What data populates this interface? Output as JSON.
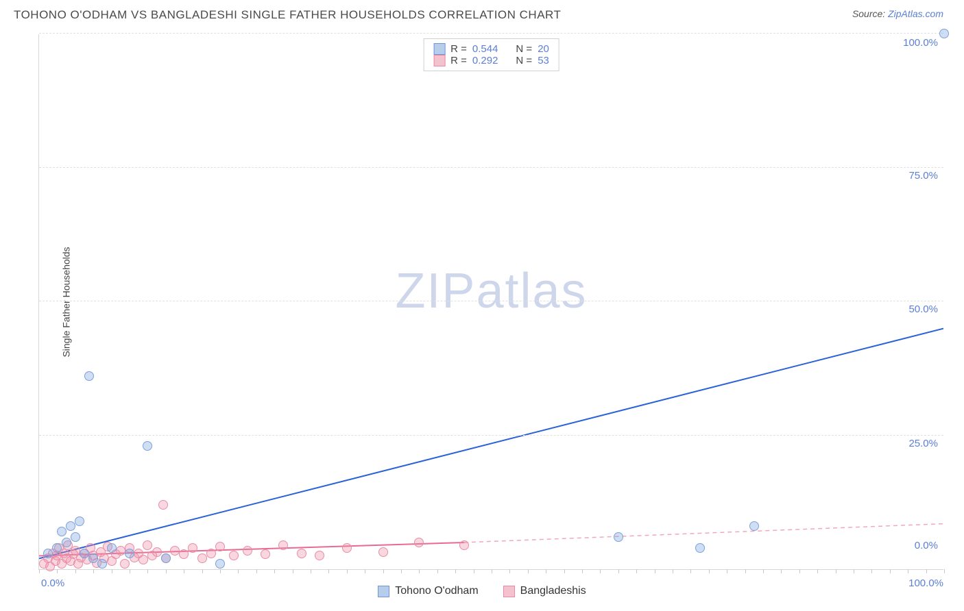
{
  "title": "TOHONO O'ODHAM VS BANGLADESHI SINGLE FATHER HOUSEHOLDS CORRELATION CHART",
  "source_prefix": "Source: ",
  "source_link": "ZipAtlas.com",
  "y_axis_label": "Single Father Households",
  "watermark_a": "ZIP",
  "watermark_b": "atlas",
  "chart": {
    "type": "scatter",
    "xlim": [
      0,
      100
    ],
    "ylim": [
      0,
      100
    ],
    "y_ticks": [
      0,
      25,
      50,
      75,
      100
    ],
    "y_tick_labels": [
      "0.0%",
      "25.0%",
      "50.0%",
      "75.0%",
      "100.0%"
    ],
    "x_tick_labels_shown": [
      "0.0%",
      "100.0%"
    ],
    "x_minor_tick_step": 2,
    "bottom_left_label": "0.0%",
    "bottom_right_label": "100.0%",
    "grid_color": "#e0e0e0",
    "axis_color": "#d6d6d6",
    "axis_value_color": "#5a7fd4",
    "background_color": "#ffffff",
    "point_radius": 7,
    "series": [
      {
        "name": "Tohono O'odham",
        "fill": "rgba(120,160,220,0.35)",
        "stroke": "#7aa0dc",
        "swatch_fill": "#b8cdec",
        "swatch_border": "#6e95d4",
        "r_value": "0.544",
        "n_value": "20",
        "regression": {
          "x1": 0,
          "y1": 2,
          "x2": 100,
          "y2": 45,
          "color": "#2a62d8",
          "width": 2,
          "dash": "none"
        },
        "points": [
          [
            1,
            3
          ],
          [
            2,
            4
          ],
          [
            2.5,
            7
          ],
          [
            3,
            5
          ],
          [
            3.5,
            8
          ],
          [
            4,
            6
          ],
          [
            4.5,
            9
          ],
          [
            5,
            3
          ],
          [
            5.5,
            36
          ],
          [
            6,
            2
          ],
          [
            7,
            1
          ],
          [
            8,
            4
          ],
          [
            10,
            3
          ],
          [
            12,
            23
          ],
          [
            14,
            2
          ],
          [
            20,
            1
          ],
          [
            64,
            6
          ],
          [
            73,
            4
          ],
          [
            79,
            8
          ],
          [
            100,
            100
          ]
        ]
      },
      {
        "name": "Bangladeshis",
        "fill": "rgba(235,140,165,0.35)",
        "stroke": "#eb8ca5",
        "swatch_fill": "#f4c1ce",
        "swatch_border": "#e98aa2",
        "r_value": "0.292",
        "n_value": "53",
        "regression_solid": {
          "x1": 0,
          "y1": 2.5,
          "x2": 47,
          "y2": 5,
          "color": "#e76a92",
          "width": 2
        },
        "regression_dash": {
          "x1": 47,
          "y1": 5,
          "x2": 100,
          "y2": 8.5,
          "color": "#f0a8bb",
          "width": 1.5,
          "dash": "6,5"
        },
        "points": [
          [
            0.5,
            1
          ],
          [
            1,
            2
          ],
          [
            1.2,
            0.5
          ],
          [
            1.5,
            3
          ],
          [
            1.8,
            1.5
          ],
          [
            2,
            2.5
          ],
          [
            2.2,
            4
          ],
          [
            2.5,
            1
          ],
          [
            2.7,
            3
          ],
          [
            3,
            2
          ],
          [
            3.2,
            4.5
          ],
          [
            3.5,
            1.5
          ],
          [
            3.8,
            2.8
          ],
          [
            4,
            3.5
          ],
          [
            4.3,
            1
          ],
          [
            4.6,
            2.2
          ],
          [
            5,
            3
          ],
          [
            5.3,
            1.8
          ],
          [
            5.7,
            4
          ],
          [
            6,
            2.5
          ],
          [
            6.4,
            1.2
          ],
          [
            6.8,
            3.2
          ],
          [
            7.2,
            2
          ],
          [
            7.6,
            4.2
          ],
          [
            8,
            1.5
          ],
          [
            8.5,
            2.8
          ],
          [
            9,
            3.5
          ],
          [
            9.5,
            1
          ],
          [
            10,
            4
          ],
          [
            10.5,
            2.2
          ],
          [
            11,
            3
          ],
          [
            11.5,
            1.8
          ],
          [
            12,
            4.5
          ],
          [
            12.5,
            2.5
          ],
          [
            13,
            3.2
          ],
          [
            13.7,
            12
          ],
          [
            14,
            2
          ],
          [
            15,
            3.5
          ],
          [
            16,
            2.8
          ],
          [
            17,
            4
          ],
          [
            18,
            2
          ],
          [
            19,
            3
          ],
          [
            20,
            4.2
          ],
          [
            21.5,
            2.5
          ],
          [
            23,
            3.5
          ],
          [
            25,
            2.8
          ],
          [
            27,
            4.5
          ],
          [
            29,
            3
          ],
          [
            31,
            2.5
          ],
          [
            34,
            4
          ],
          [
            38,
            3.2
          ],
          [
            42,
            5
          ],
          [
            47,
            4.5
          ]
        ]
      }
    ]
  },
  "legend_top_label_r": "R =",
  "legend_top_label_n": "N ="
}
